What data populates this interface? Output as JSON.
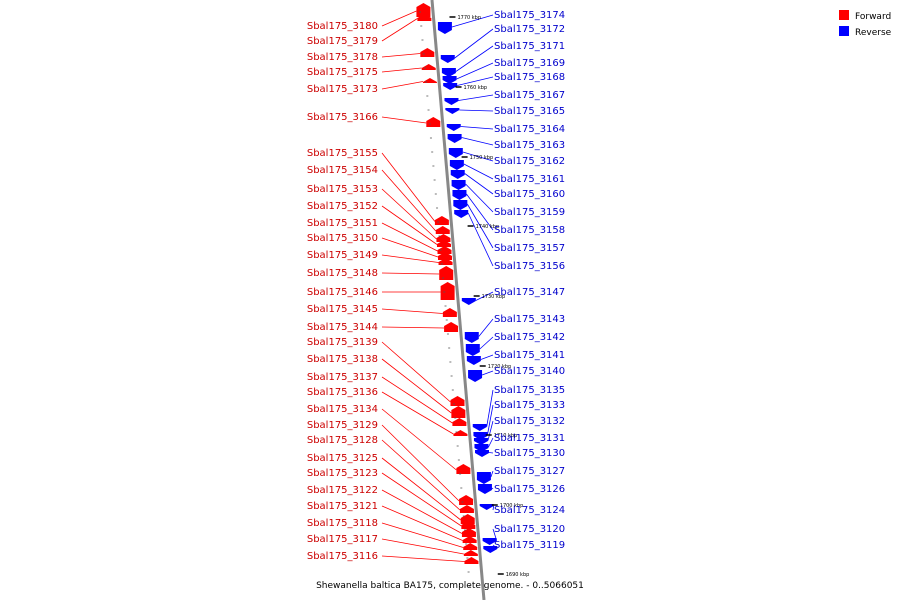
{
  "legend": [
    {
      "label": "Forward",
      "color": "#ff0000"
    },
    {
      "label": "Reverse",
      "color": "#0000ff"
    }
  ],
  "caption": "Shewanella baltica BA175, complete genome. - 0..5066051",
  "colors": {
    "forward": "#ff0000",
    "reverse": "#0000ff",
    "backbone": "#888888",
    "label_forward": "#cc0000",
    "label_reverse": "#0000cc"
  },
  "forward_genes": [
    "Sbal175_3180",
    "Sbal175_3179",
    "Sbal175_3178",
    "Sbal175_3175",
    "Sbal175_3173",
    "Sbal175_3166",
    "Sbal175_3155",
    "Sbal175_3154",
    "Sbal175_3153",
    "Sbal175_3152",
    "Sbal175_3151",
    "Sbal175_3150",
    "Sbal175_3149",
    "Sbal175_3148",
    "Sbal175_3146",
    "Sbal175_3145",
    "Sbal175_3144",
    "Sbal175_3139",
    "Sbal175_3138",
    "Sbal175_3137",
    "Sbal175_3136",
    "Sbal175_3134",
    "Sbal175_3129",
    "Sbal175_3128",
    "Sbal175_3125",
    "Sbal175_3123",
    "Sbal175_3122",
    "Sbal175_3121",
    "Sbal175_3118",
    "Sbal175_3117",
    "Sbal175_3116"
  ],
  "reverse_genes": [
    "Sbal175_3174",
    "Sbal175_3172",
    "Sbal175_3171",
    "Sbal175_3169",
    "Sbal175_3168",
    "Sbal175_3167",
    "Sbal175_3165",
    "Sbal175_3164",
    "Sbal175_3163",
    "Sbal175_3162",
    "Sbal175_3161",
    "Sbal175_3160",
    "Sbal175_3159",
    "Sbal175_3158",
    "Sbal175_3157",
    "Sbal175_3156",
    "Sbal175_3147",
    "Sbal175_3143",
    "Sbal175_3142",
    "Sbal175_3141",
    "Sbal175_3140",
    "Sbal175_3135",
    "Sbal175_3133",
    "Sbal175_3132",
    "Sbal175_3131",
    "Sbal175_3130",
    "Sbal175_3127",
    "Sbal175_3126",
    "Sbal175_3124",
    "Sbal175_3120",
    "Sbal175_3119"
  ],
  "scale_labels": [
    "1770 kbp",
    "1760 kbp",
    "1750 kbp",
    "1740 kbp",
    "1730 kbp",
    "1720 kbp",
    "1710 kbp",
    "1700 kbp",
    "1690 kbp"
  ]
}
